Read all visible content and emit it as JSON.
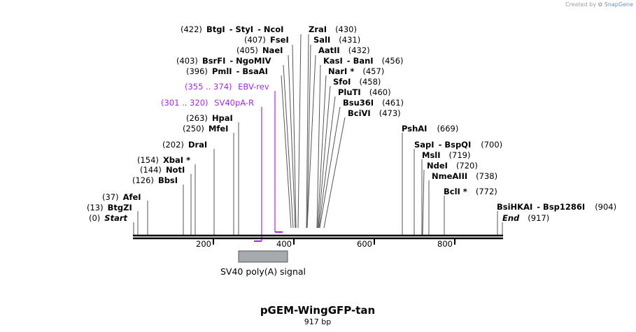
{
  "credit": {
    "prefix": "Created by",
    "brand": "SnapGene"
  },
  "map": {
    "title": "pGEM-WingGFP-tan",
    "length_label": "917 bp",
    "length": 917
  },
  "ticks": [
    "200",
    "400",
    "600",
    "800"
  ],
  "feature": {
    "name": "SV40 poly(A) signal",
    "start": 263,
    "end": 384,
    "color": "#a6a9ad"
  },
  "primers": [
    {
      "range": "(355 .. 374)",
      "name": "EBV-rev",
      "start": 355,
      "end": 374,
      "strand": "reverse",
      "color": "#9b30d0"
    },
    {
      "range": "(301 .. 320)",
      "name": "SV40pA-R",
      "start": 301,
      "end": 320,
      "strand": "reverse",
      "color": "#9b30d0"
    }
  ],
  "enzymes": [
    {
      "row": "btg1",
      "prefix": "(422)",
      "name": "BtgI",
      "sep": "",
      "suffix": ""
    },
    {
      "row": "btg1b",
      "prefix": "",
      "name": "- StyI",
      "sep": "",
      "suffix": ""
    },
    {
      "row": "btg1c",
      "prefix": "",
      "name": "- NcoI",
      "sep": "",
      "suffix": ""
    },
    {
      "row": "zra",
      "prefix": "",
      "name": "ZraI",
      "sep": "",
      "suffix": "(430)"
    },
    {
      "row": "fse",
      "prefix": "(407)",
      "name": "FseI",
      "sep": "",
      "suffix": ""
    },
    {
      "row": "sal",
      "prefix": "",
      "name": "SalI",
      "sep": "",
      "suffix": "(431)"
    },
    {
      "row": "nae",
      "prefix": "(405)",
      "name": "NaeI",
      "sep": "",
      "suffix": ""
    },
    {
      "row": "aat",
      "prefix": "",
      "name": "AatII",
      "sep": "",
      "suffix": "(432)"
    },
    {
      "row": "bsrf",
      "prefix": "(403)",
      "name": "BsrFI",
      "sep": "",
      "suffix": ""
    },
    {
      "row": "bsrfb",
      "prefix": "",
      "name": "- NgoMIV",
      "sep": "",
      "suffix": ""
    },
    {
      "row": "kas",
      "prefix": "",
      "name": "KasI",
      "sep": "",
      "suffix": ""
    },
    {
      "row": "kasb",
      "prefix": "",
      "name": "- BanI",
      "sep": "",
      "suffix": "(456)"
    },
    {
      "row": "pml",
      "prefix": "(396)",
      "name": "PmlI",
      "sep": "",
      "suffix": ""
    },
    {
      "row": "pmlb",
      "prefix": "",
      "name": "- BsaAI",
      "sep": "",
      "suffix": ""
    },
    {
      "row": "nar",
      "prefix": "",
      "name": "NarI *",
      "sep": "",
      "suffix": "(457)"
    },
    {
      "row": "sfo",
      "prefix": "",
      "name": "SfoI",
      "sep": "",
      "suffix": "(458)"
    },
    {
      "row": "plu",
      "prefix": "",
      "name": "PluTI",
      "sep": "",
      "suffix": "(460)"
    },
    {
      "row": "bsu",
      "prefix": "",
      "name": "Bsu36I",
      "sep": "",
      "suffix": "(461)"
    },
    {
      "row": "bci",
      "prefix": "",
      "name": "BciVI",
      "sep": "",
      "suffix": "(473)"
    },
    {
      "row": "hpa",
      "prefix": "(263)",
      "name": "HpaI",
      "sep": "",
      "suffix": ""
    },
    {
      "row": "mfe",
      "prefix": "(250)",
      "name": "MfeI",
      "sep": "",
      "suffix": ""
    },
    {
      "row": "dra",
      "prefix": "(202)",
      "name": "DraI",
      "sep": "",
      "suffix": ""
    },
    {
      "row": "xba",
      "prefix": "(154)",
      "name": "XbaI *",
      "sep": "",
      "suffix": ""
    },
    {
      "row": "not",
      "prefix": "(144)",
      "name": "NotI",
      "sep": "",
      "suffix": ""
    },
    {
      "row": "bbs",
      "prefix": "(126)",
      "name": "BbsI",
      "sep": "",
      "suffix": ""
    },
    {
      "row": "afe",
      "prefix": "(37)",
      "name": "AfeI",
      "sep": "",
      "suffix": ""
    },
    {
      "row": "btgz",
      "prefix": "(13)",
      "name": "BtgZI",
      "sep": "",
      "suffix": ""
    },
    {
      "row": "start",
      "prefix": "(0)",
      "name": "Start",
      "sep": "",
      "suffix": ""
    },
    {
      "row": "psh",
      "prefix": "",
      "name": "PshAI",
      "sep": "",
      "suffix": "(669)"
    },
    {
      "row": "sap",
      "prefix": "",
      "name": "SapI",
      "sep": "",
      "suffix": ""
    },
    {
      "row": "sapb",
      "prefix": "",
      "name": "- BspQI",
      "sep": "",
      "suffix": "(700)"
    },
    {
      "row": "msl",
      "prefix": "",
      "name": "MslI",
      "sep": "",
      "suffix": "(719)"
    },
    {
      "row": "nde",
      "prefix": "",
      "name": "NdeI",
      "sep": "",
      "suffix": "(720)"
    },
    {
      "row": "nme",
      "prefix": "",
      "name": "NmeAIII",
      "sep": "",
      "suffix": "(738)"
    },
    {
      "row": "bcl",
      "prefix": "",
      "name": "BclI *",
      "sep": "",
      "suffix": "(772)"
    },
    {
      "row": "bsi",
      "prefix": "",
      "name": "BsiHKAI",
      "sep": "",
      "suffix": ""
    },
    {
      "row": "bsib",
      "prefix": "",
      "name": "- Bsp1286I",
      "sep": "",
      "suffix": "(904)"
    },
    {
      "row": "end",
      "prefix": "",
      "name": "End",
      "sep": "",
      "suffix": "(917)"
    }
  ]
}
